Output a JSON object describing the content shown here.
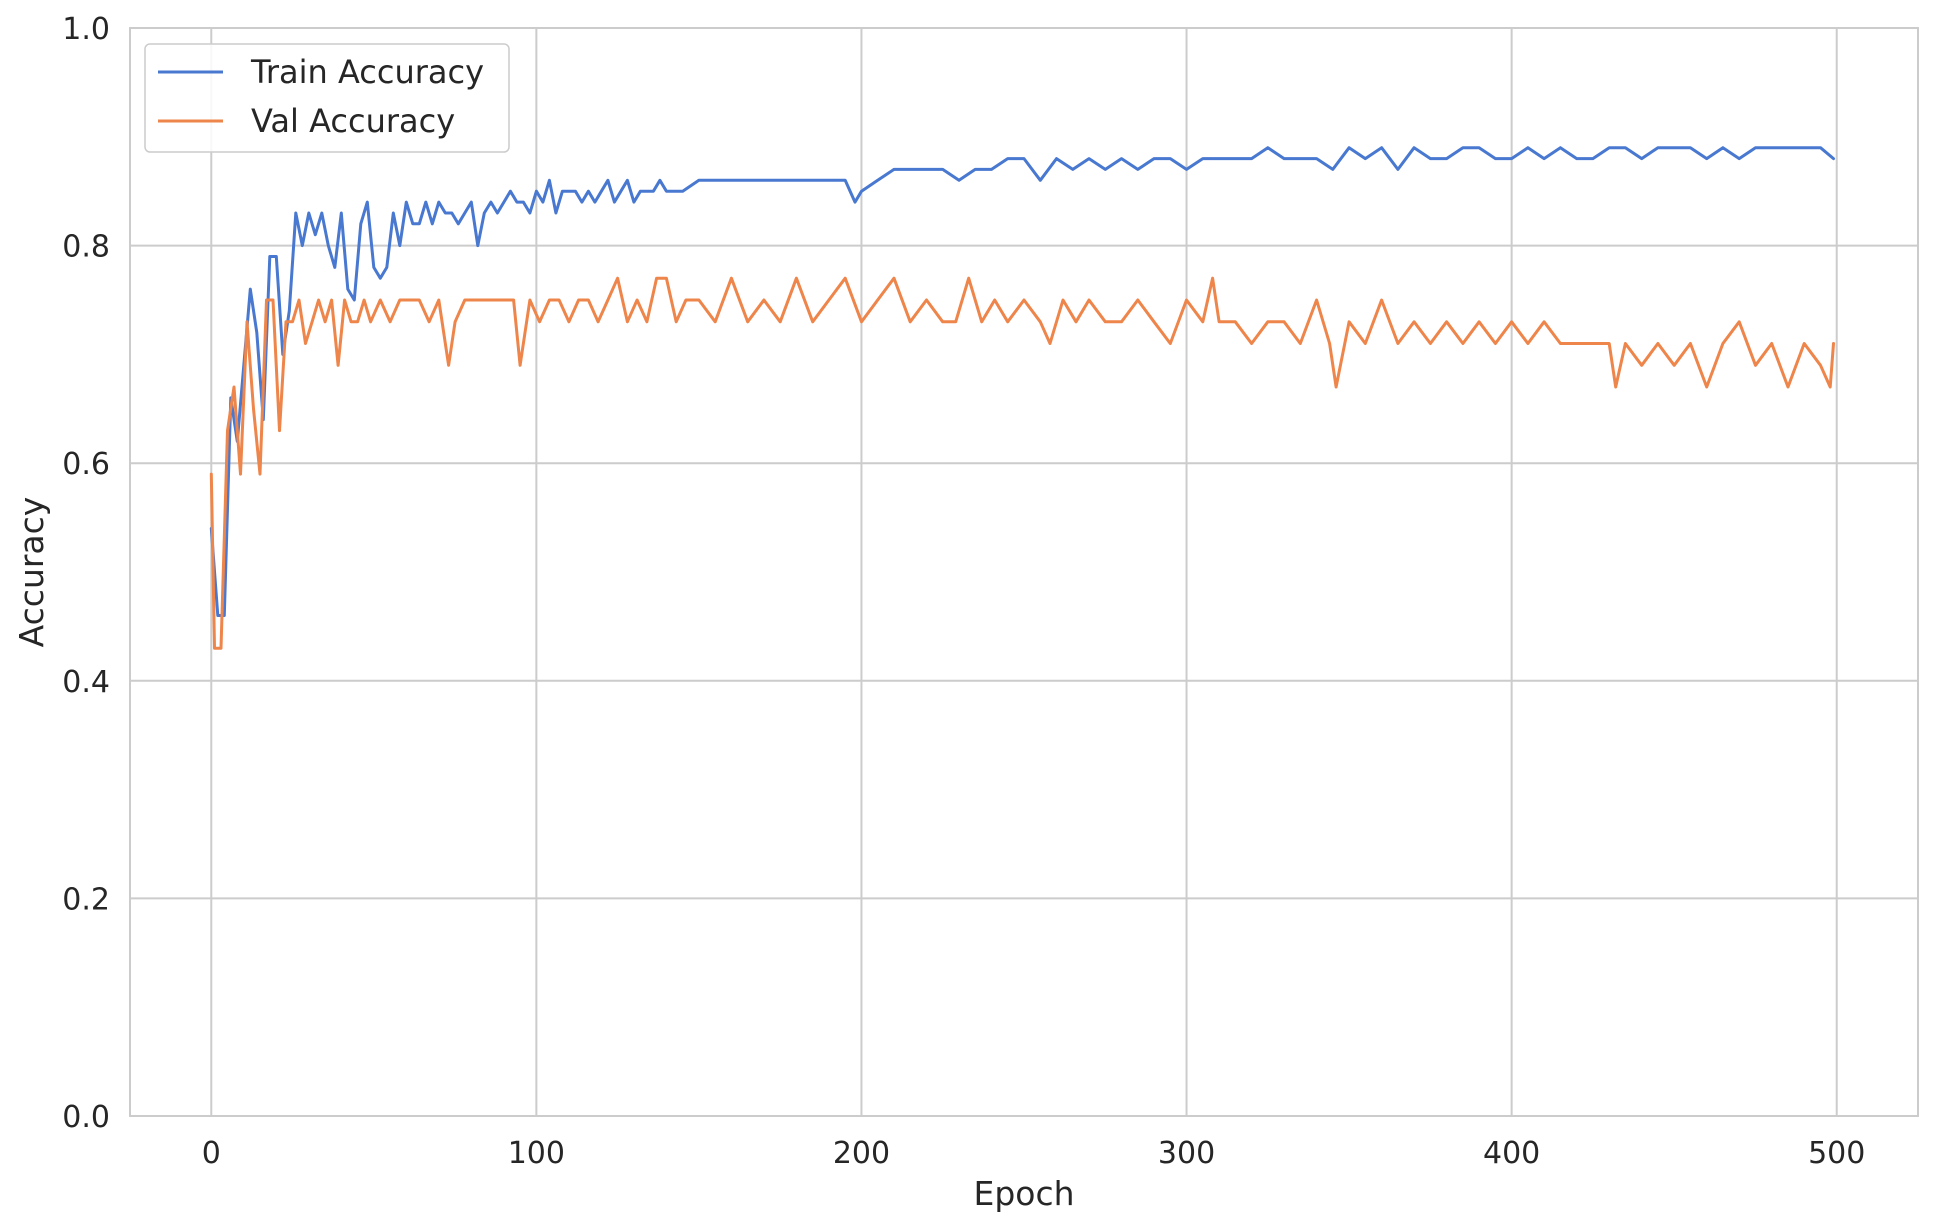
{
  "chart_data": {
    "type": "line",
    "title": "",
    "xlabel": "Epoch",
    "ylabel": "Accuracy",
    "xlim": [
      -25,
      525
    ],
    "ylim": [
      0.0,
      1.0
    ],
    "xticks": [
      0,
      100,
      200,
      300,
      400,
      500
    ],
    "xtick_labels": [
      "0",
      "100",
      "200",
      "300",
      "400",
      "500"
    ],
    "yticks": [
      0.0,
      0.2,
      0.4,
      0.6,
      0.8,
      1.0
    ],
    "ytick_labels": [
      "0.0",
      "0.2",
      "0.4",
      "0.6",
      "0.8",
      "1.0"
    ],
    "grid": true,
    "legend_position": "top-left",
    "series": [
      {
        "name": "Train Accuracy",
        "color": "#4878d0",
        "x": [
          0,
          2,
          4,
          6,
          8,
          10,
          12,
          14,
          16,
          18,
          20,
          22,
          24,
          26,
          28,
          30,
          32,
          34,
          36,
          38,
          40,
          42,
          44,
          46,
          48,
          50,
          52,
          54,
          56,
          58,
          60,
          62,
          64,
          66,
          68,
          70,
          72,
          74,
          76,
          78,
          80,
          82,
          84,
          86,
          88,
          90,
          92,
          94,
          96,
          98,
          100,
          102,
          104,
          106,
          108,
          110,
          112,
          114,
          116,
          118,
          120,
          122,
          124,
          126,
          128,
          130,
          132,
          134,
          136,
          138,
          140,
          145,
          150,
          155,
          160,
          165,
          170,
          175,
          180,
          185,
          190,
          195,
          198,
          200,
          205,
          210,
          215,
          220,
          225,
          230,
          235,
          240,
          245,
          250,
          255,
          260,
          265,
          270,
          275,
          280,
          285,
          290,
          295,
          300,
          305,
          310,
          315,
          320,
          325,
          330,
          335,
          340,
          345,
          350,
          355,
          360,
          365,
          370,
          375,
          380,
          385,
          390,
          395,
          400,
          405,
          410,
          415,
          420,
          425,
          430,
          435,
          440,
          445,
          450,
          455,
          460,
          465,
          470,
          475,
          480,
          485,
          490,
          495,
          499
        ],
        "values": [
          0.54,
          0.46,
          0.46,
          0.66,
          0.62,
          0.69,
          0.76,
          0.72,
          0.64,
          0.79,
          0.79,
          0.7,
          0.74,
          0.83,
          0.8,
          0.83,
          0.81,
          0.83,
          0.8,
          0.78,
          0.83,
          0.76,
          0.75,
          0.82,
          0.84,
          0.78,
          0.77,
          0.78,
          0.83,
          0.8,
          0.84,
          0.82,
          0.82,
          0.84,
          0.82,
          0.84,
          0.83,
          0.83,
          0.82,
          0.83,
          0.84,
          0.8,
          0.83,
          0.84,
          0.83,
          0.84,
          0.85,
          0.84,
          0.84,
          0.83,
          0.85,
          0.84,
          0.86,
          0.83,
          0.85,
          0.85,
          0.85,
          0.84,
          0.85,
          0.84,
          0.85,
          0.86,
          0.84,
          0.85,
          0.86,
          0.84,
          0.85,
          0.85,
          0.85,
          0.86,
          0.85,
          0.85,
          0.86,
          0.86,
          0.86,
          0.86,
          0.86,
          0.86,
          0.86,
          0.86,
          0.86,
          0.86,
          0.84,
          0.85,
          0.86,
          0.87,
          0.87,
          0.87,
          0.87,
          0.86,
          0.87,
          0.87,
          0.88,
          0.88,
          0.86,
          0.88,
          0.87,
          0.88,
          0.87,
          0.88,
          0.87,
          0.88,
          0.88,
          0.87,
          0.88,
          0.88,
          0.88,
          0.88,
          0.89,
          0.88,
          0.88,
          0.88,
          0.87,
          0.89,
          0.88,
          0.89,
          0.87,
          0.89,
          0.88,
          0.88,
          0.89,
          0.89,
          0.88,
          0.88,
          0.89,
          0.88,
          0.89,
          0.88,
          0.88,
          0.89,
          0.89,
          0.88,
          0.89,
          0.89,
          0.89,
          0.88,
          0.89,
          0.88,
          0.89,
          0.89,
          0.89,
          0.89,
          0.89,
          0.88
        ]
      },
      {
        "name": "Val Accuracy",
        "color": "#ee854a",
        "x": [
          0,
          1,
          3,
          5,
          7,
          9,
          11,
          13,
          15,
          17,
          19,
          21,
          23,
          25,
          27,
          29,
          31,
          33,
          35,
          37,
          39,
          41,
          43,
          45,
          47,
          49,
          52,
          55,
          58,
          61,
          64,
          67,
          70,
          73,
          75,
          78,
          81,
          84,
          87,
          90,
          93,
          95,
          98,
          101,
          104,
          107,
          110,
          113,
          116,
          119,
          122,
          125,
          128,
          131,
          134,
          137,
          140,
          143,
          146,
          150,
          155,
          160,
          165,
          170,
          175,
          180,
          185,
          190,
          195,
          200,
          205,
          210,
          215,
          220,
          225,
          229,
          233,
          237,
          241,
          245,
          250,
          255,
          258,
          262,
          266,
          270,
          275,
          280,
          285,
          290,
          295,
          300,
          305,
          308,
          310,
          315,
          320,
          325,
          330,
          335,
          340,
          344,
          346,
          350,
          355,
          360,
          365,
          370,
          375,
          380,
          385,
          390,
          395,
          400,
          405,
          410,
          415,
          420,
          425,
          430,
          432,
          435,
          440,
          445,
          450,
          455,
          460,
          465,
          470,
          475,
          480,
          485,
          490,
          495,
          498,
          499
        ],
        "values": [
          0.59,
          0.43,
          0.43,
          0.63,
          0.67,
          0.59,
          0.73,
          0.65,
          0.59,
          0.75,
          0.75,
          0.63,
          0.73,
          0.73,
          0.75,
          0.71,
          0.73,
          0.75,
          0.73,
          0.75,
          0.69,
          0.75,
          0.73,
          0.73,
          0.75,
          0.73,
          0.75,
          0.73,
          0.75,
          0.75,
          0.75,
          0.73,
          0.75,
          0.69,
          0.73,
          0.75,
          0.75,
          0.75,
          0.75,
          0.75,
          0.75,
          0.69,
          0.75,
          0.73,
          0.75,
          0.75,
          0.73,
          0.75,
          0.75,
          0.73,
          0.75,
          0.77,
          0.73,
          0.75,
          0.73,
          0.77,
          0.77,
          0.73,
          0.75,
          0.75,
          0.73,
          0.77,
          0.73,
          0.75,
          0.73,
          0.77,
          0.73,
          0.75,
          0.77,
          0.73,
          0.75,
          0.77,
          0.73,
          0.75,
          0.73,
          0.73,
          0.77,
          0.73,
          0.75,
          0.73,
          0.75,
          0.73,
          0.71,
          0.75,
          0.73,
          0.75,
          0.73,
          0.73,
          0.75,
          0.73,
          0.71,
          0.75,
          0.73,
          0.77,
          0.73,
          0.73,
          0.71,
          0.73,
          0.73,
          0.71,
          0.75,
          0.71,
          0.67,
          0.73,
          0.71,
          0.75,
          0.71,
          0.73,
          0.71,
          0.73,
          0.71,
          0.73,
          0.71,
          0.73,
          0.71,
          0.73,
          0.71,
          0.71,
          0.71,
          0.71,
          0.67,
          0.71,
          0.69,
          0.71,
          0.69,
          0.71,
          0.67,
          0.71,
          0.73,
          0.69,
          0.71,
          0.67,
          0.71,
          0.69,
          0.67,
          0.71
        ]
      }
    ]
  }
}
